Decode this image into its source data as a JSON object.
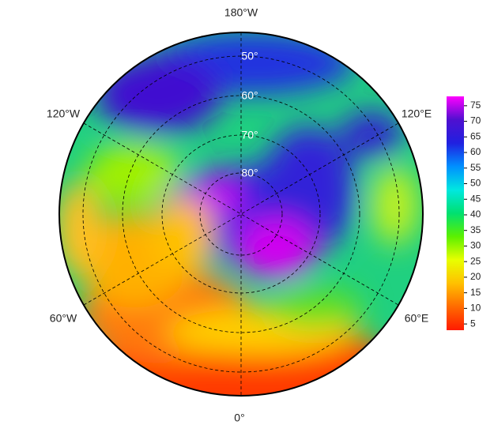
{
  "map": {
    "longitude_labels": [
      "180°W",
      "120°E",
      "60°E",
      "0°",
      "60°W",
      "120°W"
    ],
    "latitude_labels": [
      "50°",
      "60°",
      "70°",
      "80°"
    ]
  },
  "colorbar": {
    "range": [
      3,
      78
    ],
    "ticks": [
      5,
      10,
      15,
      20,
      25,
      30,
      35,
      40,
      45,
      50,
      55,
      60,
      65,
      70,
      75
    ],
    "colors": [
      "#ff1a00",
      "#ff6a00",
      "#ffc000",
      "#e8ff00",
      "#5cf000",
      "#00e070",
      "#00e8e0",
      "#0090ff",
      "#2020e0",
      "#5010d0",
      "#ff00ff"
    ]
  }
}
